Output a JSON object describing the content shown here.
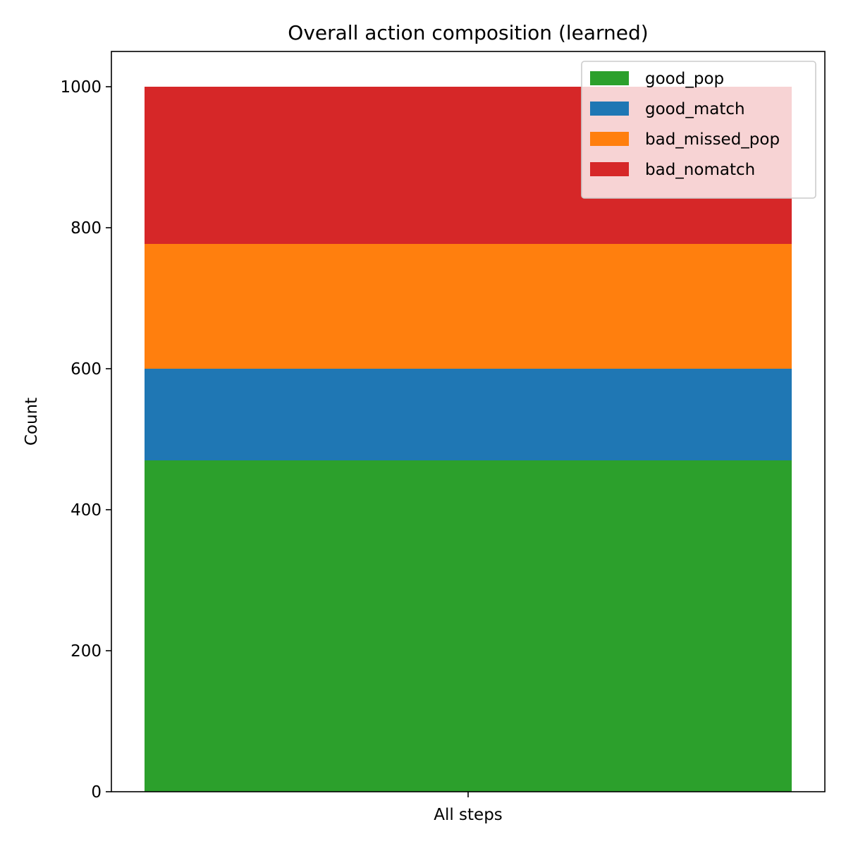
{
  "chart_data": {
    "type": "bar",
    "stacked": true,
    "title": "Overall action composition (learned)",
    "xlabel": "",
    "ylabel": "Count",
    "categories": [
      "All steps"
    ],
    "ylim": [
      0,
      1050
    ],
    "yticks": [
      0,
      200,
      400,
      600,
      800,
      1000
    ],
    "grid": false,
    "legend_position": "top-right",
    "series": [
      {
        "name": "good_pop",
        "values": [
          470
        ],
        "color": "#2ca02c"
      },
      {
        "name": "good_match",
        "values": [
          130
        ],
        "color": "#1f77b4"
      },
      {
        "name": "bad_missed_pop",
        "values": [
          177
        ],
        "color": "#ff7f0e"
      },
      {
        "name": "bad_nomatch",
        "values": [
          223
        ],
        "color": "#d62728"
      }
    ]
  }
}
